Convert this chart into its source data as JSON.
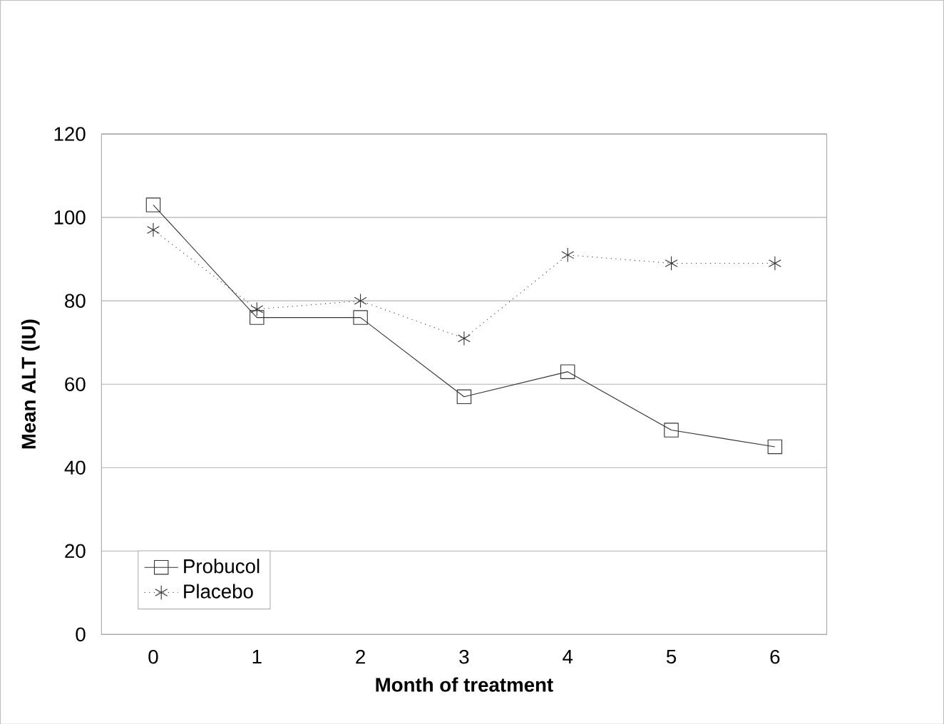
{
  "chart_data": {
    "type": "line",
    "xlabel": "Month of treatment",
    "ylabel": "Mean ALT (IU)",
    "categories": [
      "0",
      "1",
      "2",
      "3",
      "4",
      "5",
      "6"
    ],
    "series": [
      {
        "name": "Probucol",
        "color": "#333333",
        "values": [
          103,
          76,
          76,
          57,
          63,
          49,
          45
        ],
        "marker": "square",
        "line_style": "solid"
      },
      {
        "name": "Placebo",
        "color": "#333333",
        "values": [
          97,
          78,
          80,
          71,
          91,
          89,
          89
        ],
        "marker": "cross",
        "line_style": "dotted"
      }
    ],
    "ylim": [
      0,
      120
    ],
    "yticks": [
      0,
      20,
      40,
      60,
      80,
      100,
      120
    ],
    "grid": "y",
    "legend": "bottom left"
  }
}
